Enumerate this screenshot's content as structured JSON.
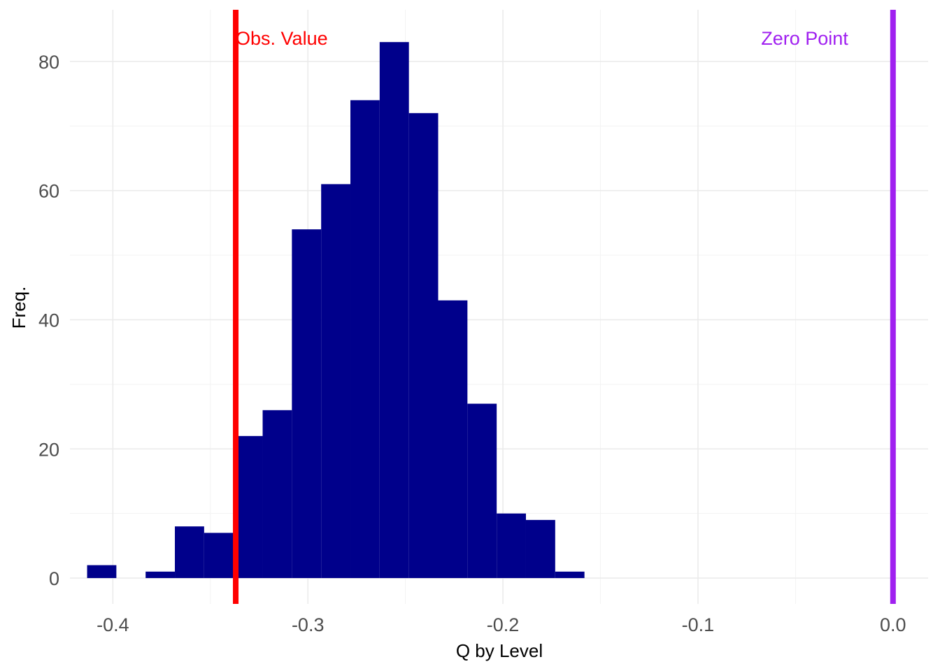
{
  "chart_data": {
    "type": "bar",
    "subtype": "histogram",
    "title": "",
    "xlabel": "Q by Level",
    "ylabel": "Freq.",
    "xlim": [
      -0.422,
      0.018
    ],
    "ylim": [
      -4,
      88
    ],
    "x_ticks": [
      -0.4,
      -0.3,
      -0.2,
      -0.1,
      0.0
    ],
    "x_tick_labels": [
      "-0.4",
      "-0.3",
      "-0.2",
      "-0.1",
      "0.0"
    ],
    "y_ticks": [
      0,
      20,
      40,
      60,
      80
    ],
    "y_tick_labels": [
      "0",
      "20",
      "40",
      "60",
      "80"
    ],
    "grid": true,
    "bin_width": 0.015,
    "bins": [
      {
        "x0": -0.4132,
        "x1": -0.3982,
        "count": 2
      },
      {
        "x0": -0.3982,
        "x1": -0.3832,
        "count": 0
      },
      {
        "x0": -0.3832,
        "x1": -0.3682,
        "count": 1
      },
      {
        "x0": -0.3682,
        "x1": -0.3532,
        "count": 8
      },
      {
        "x0": -0.3532,
        "x1": -0.3382,
        "count": 7
      },
      {
        "x0": -0.3382,
        "x1": -0.3232,
        "count": 22
      },
      {
        "x0": -0.3232,
        "x1": -0.3082,
        "count": 26
      },
      {
        "x0": -0.3082,
        "x1": -0.2932,
        "count": 54
      },
      {
        "x0": -0.2932,
        "x1": -0.2782,
        "count": 61
      },
      {
        "x0": -0.2782,
        "x1": -0.2632,
        "count": 74
      },
      {
        "x0": -0.2632,
        "x1": -0.2482,
        "count": 83
      },
      {
        "x0": -0.2482,
        "x1": -0.2332,
        "count": 72
      },
      {
        "x0": -0.2332,
        "x1": -0.2182,
        "count": 43
      },
      {
        "x0": -0.2182,
        "x1": -0.2032,
        "count": 27
      },
      {
        "x0": -0.2032,
        "x1": -0.1882,
        "count": 10
      },
      {
        "x0": -0.1882,
        "x1": -0.1732,
        "count": 9
      },
      {
        "x0": -0.1732,
        "x1": -0.1582,
        "count": 1
      }
    ],
    "bar_color": "#00008b",
    "reference_lines": [
      {
        "label": "Obs. Value",
        "x": -0.337,
        "color": "#ff0000"
      },
      {
        "label": "Zero Point",
        "x": 0.0,
        "color": "#a020f0"
      }
    ]
  }
}
